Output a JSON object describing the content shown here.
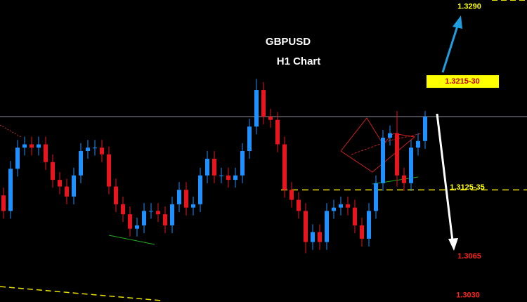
{
  "chart_data": {
    "type": "candlestick",
    "title": "GBPUSD",
    "subtitle": "H1 Chart",
    "ylim": [
      1.3024,
      1.3296
    ],
    "up_color": "#1e90ff",
    "down_color": "#e8141e",
    "price_line": 1.3191,
    "series": {
      "open": [
        1.312,
        1.3106,
        1.3144,
        1.3163,
        1.3166,
        1.3163,
        1.3166,
        1.315,
        1.3134,
        1.3128,
        1.3119,
        1.3138,
        1.316,
        1.3163,
        1.3163,
        1.3157,
        1.3128,
        1.3112,
        1.3103,
        1.309,
        1.3093,
        1.3106,
        1.3106,
        1.3103,
        1.3093,
        1.3112,
        1.3125,
        1.3109,
        1.3112,
        1.3138,
        1.3153,
        1.3138,
        1.3138,
        1.3134,
        1.3138,
        1.316,
        1.3182,
        1.3215,
        1.3191,
        1.3188,
        1.3166,
        1.3125,
        1.3116,
        1.3106,
        1.3078,
        1.3087,
        1.3078,
        1.3106,
        1.3109,
        1.3112,
        1.3109,
        1.3093,
        1.3081,
        1.3106,
        1.3131,
        1.3172,
        1.3176,
        1.3138,
        1.3131,
        1.3163,
        1.3169
      ],
      "high": [
        1.3127,
        1.3151,
        1.317,
        1.3173,
        1.3173,
        1.3173,
        1.3173,
        1.3157,
        1.3141,
        1.3135,
        1.3145,
        1.3167,
        1.317,
        1.317,
        1.317,
        1.3164,
        1.3135,
        1.3119,
        1.311,
        1.31,
        1.3113,
        1.3113,
        1.3113,
        1.311,
        1.3119,
        1.3132,
        1.3132,
        1.3119,
        1.3145,
        1.316,
        1.316,
        1.3145,
        1.3145,
        1.3145,
        1.3167,
        1.3189,
        1.3225,
        1.3222,
        1.3198,
        1.3195,
        1.3173,
        1.3132,
        1.3123,
        1.3113,
        1.3094,
        1.3094,
        1.3113,
        1.3116,
        1.3119,
        1.3119,
        1.3116,
        1.31,
        1.3113,
        1.3138,
        1.3179,
        1.3183,
        1.3196,
        1.3145,
        1.317,
        1.3176,
        1.3196
      ],
      "low": [
        1.3099,
        1.3099,
        1.3137,
        1.3156,
        1.3156,
        1.3156,
        1.3143,
        1.3127,
        1.3121,
        1.3112,
        1.3112,
        1.3131,
        1.3153,
        1.3156,
        1.315,
        1.3121,
        1.3105,
        1.3096,
        1.3083,
        1.3083,
        1.3086,
        1.3099,
        1.3096,
        1.3086,
        1.3086,
        1.3105,
        1.3102,
        1.3102,
        1.3105,
        1.3131,
        1.3131,
        1.3131,
        1.3127,
        1.3127,
        1.3131,
        1.3153,
        1.3175,
        1.3184,
        1.3181,
        1.3159,
        1.3118,
        1.3109,
        1.3099,
        1.3068,
        1.3071,
        1.3071,
        1.3071,
        1.3099,
        1.3102,
        1.3102,
        1.3086,
        1.3074,
        1.3074,
        1.3099,
        1.3124,
        1.3165,
        1.3128,
        1.3124,
        1.3124,
        1.3156,
        1.3162
      ],
      "close": [
        1.3106,
        1.3144,
        1.3163,
        1.3166,
        1.3163,
        1.3166,
        1.315,
        1.3134,
        1.3128,
        1.3119,
        1.3138,
        1.316,
        1.3163,
        1.3163,
        1.3157,
        1.3128,
        1.3112,
        1.3103,
        1.309,
        1.3093,
        1.3106,
        1.3106,
        1.3103,
        1.3093,
        1.3112,
        1.3125,
        1.3109,
        1.3112,
        1.3138,
        1.3153,
        1.3138,
        1.3138,
        1.3134,
        1.3138,
        1.316,
        1.3182,
        1.3215,
        1.3191,
        1.3188,
        1.3166,
        1.3125,
        1.3116,
        1.3106,
        1.3078,
        1.3087,
        1.3078,
        1.3106,
        1.3109,
        1.3112,
        1.3109,
        1.3093,
        1.3081,
        1.3106,
        1.3131,
        1.3172,
        1.3176,
        1.3138,
        1.3131,
        1.3163,
        1.3169,
        1.3191
      ]
    },
    "annotations": [
      {
        "label": "1.3290",
        "value": 1.329,
        "color": "#ffff00"
      },
      {
        "label": "1.3215-30",
        "value": 1.3215,
        "color": "#c00000",
        "box": "#ffff00"
      },
      {
        "label": "1.3125-35",
        "value": 1.3125,
        "color": "#ffff00"
      },
      {
        "label": "1.3065",
        "value": 1.3065,
        "color": "#ff2020"
      },
      {
        "label": "1.3030",
        "value": 1.303,
        "color": "#ff2020"
      }
    ]
  }
}
